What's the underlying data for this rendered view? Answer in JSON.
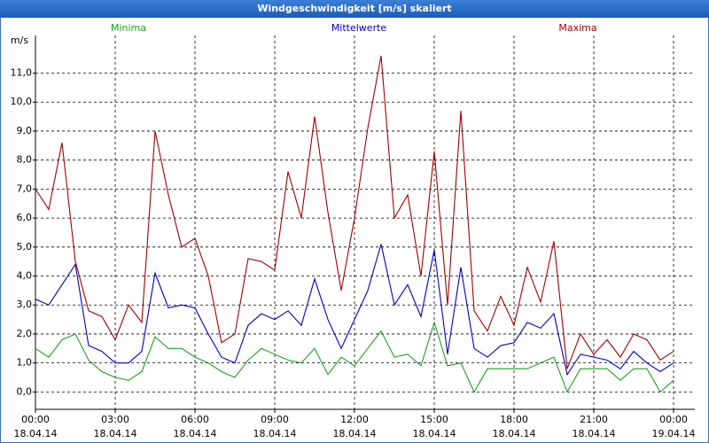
{
  "chart_data": {
    "type": "line",
    "title": "Windgeschwindigkeit [m/s] skaliert",
    "ylabel": "m/s",
    "x": [
      0,
      0.5,
      1,
      1.5,
      2,
      2.5,
      3,
      3.5,
      4,
      4.5,
      5,
      5.5,
      6,
      6.5,
      7,
      7.5,
      8,
      8.5,
      9,
      9.5,
      10,
      10.5,
      11,
      11.5,
      12,
      12.5,
      13,
      13.5,
      14,
      14.5,
      15,
      15.5,
      16,
      16.5,
      17,
      17.5,
      18,
      18.5,
      19,
      19.5,
      20,
      20.5,
      21,
      21.5,
      22,
      22.5,
      23,
      23.5,
      24
    ],
    "series": [
      {
        "name": "Minima",
        "color": "#20a020",
        "values": [
          1.5,
          1.2,
          1.8,
          2.0,
          1.1,
          0.7,
          0.5,
          0.4,
          0.7,
          1.9,
          1.5,
          1.5,
          1.2,
          1.0,
          0.7,
          0.5,
          1.1,
          1.5,
          1.3,
          1.1,
          1.0,
          1.5,
          0.6,
          1.2,
          0.9,
          1.5,
          2.1,
          1.2,
          1.3,
          0.9,
          2.4,
          0.9,
          1.0,
          0.0,
          0.8,
          0.8,
          0.8,
          0.8,
          1.0,
          1.2,
          0.0,
          0.8,
          0.8,
          0.8,
          0.4,
          0.8,
          0.8,
          0.0,
          0.4
        ]
      },
      {
        "name": "Mittelwerte",
        "color": "#0000c0",
        "values": [
          3.2,
          3.0,
          3.7,
          4.4,
          1.6,
          1.4,
          1.0,
          1.0,
          1.4,
          4.1,
          2.9,
          3.0,
          2.9,
          2.0,
          1.2,
          1.0,
          2.3,
          2.7,
          2.5,
          2.8,
          2.3,
          3.9,
          2.5,
          1.5,
          2.5,
          3.5,
          5.1,
          3.0,
          3.7,
          2.6,
          4.9,
          1.3,
          4.3,
          1.5,
          1.2,
          1.6,
          1.7,
          2.4,
          2.2,
          2.7,
          0.6,
          1.3,
          1.2,
          1.1,
          0.8,
          1.4,
          1.0,
          0.7,
          1.0
        ]
      },
      {
        "name": "Maxima",
        "color": "#a00000",
        "values": [
          7.0,
          6.3,
          8.6,
          4.5,
          2.8,
          2.6,
          1.8,
          3.0,
          2.4,
          9.0,
          6.8,
          5.0,
          5.3,
          4.0,
          1.7,
          2.0,
          4.6,
          4.5,
          4.2,
          7.6,
          6.0,
          9.5,
          6.2,
          3.5,
          6.0,
          9.1,
          11.6,
          6.0,
          6.8,
          4.0,
          8.3,
          3.0,
          9.7,
          2.8,
          2.1,
          3.3,
          2.3,
          4.3,
          3.1,
          5.2,
          0.8,
          2.0,
          1.3,
          1.8,
          1.2,
          2.0,
          1.8,
          1.1,
          1.4
        ]
      }
    ],
    "xlim": [
      0,
      24.8
    ],
    "xticks": [
      {
        "value": 0,
        "label": "00:00",
        "date": "18.04.14"
      },
      {
        "value": 3,
        "label": "03:00",
        "date": "18.04.14"
      },
      {
        "value": 6,
        "label": "06:00",
        "date": "18.04.14"
      },
      {
        "value": 9,
        "label": "09:00",
        "date": "18.04.14"
      },
      {
        "value": 12,
        "label": "12:00",
        "date": "18.04.14"
      },
      {
        "value": 15,
        "label": "15:00",
        "date": "18.04.14"
      },
      {
        "value": 18,
        "label": "18:00",
        "date": "18.04.14"
      },
      {
        "value": 21,
        "label": "21:00",
        "date": "18.04.14"
      },
      {
        "value": 24,
        "label": "00:00",
        "date": "19.04.14"
      }
    ],
    "ylim": [
      -0.6,
      12.3
    ],
    "yticks": [
      {
        "value": 0,
        "label": "0,0"
      },
      {
        "value": 1,
        "label": "1,0"
      },
      {
        "value": 2,
        "label": "2,0"
      },
      {
        "value": 3,
        "label": "3,0"
      },
      {
        "value": 4,
        "label": "4,0"
      },
      {
        "value": 5,
        "label": "5,0"
      },
      {
        "value": 6,
        "label": "6,0"
      },
      {
        "value": 7,
        "label": "7,0"
      },
      {
        "value": 8,
        "label": "8,0"
      },
      {
        "value": 9,
        "label": "9,0"
      },
      {
        "value": 10,
        "label": "10,0"
      },
      {
        "value": 11,
        "label": "11,0"
      }
    ],
    "grid": true
  }
}
